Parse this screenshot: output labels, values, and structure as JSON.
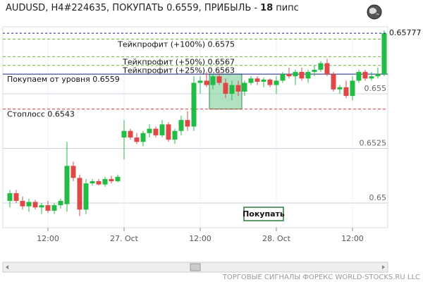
{
  "chart_data": {
    "type": "candlestick",
    "title": "AUDUSD, H4#224635, ПОКУПАТЬ 0.6559, ПРИБЫЛЬ -",
    "profit": 18,
    "profit_unit": "пипс",
    "up_color": "#22bb44",
    "down_color": "#e04848",
    "ylim": [
      0.648871,
      0.658065
    ],
    "yticks": [
      0.65,
      0.6525,
      0.655
    ],
    "xlim": [
      -1.11,
      59.56
    ],
    "xticks": [
      {
        "value": 6,
        "label": "12:00"
      },
      {
        "value": 18,
        "label": "27. Oct"
      },
      {
        "value": 30,
        "label": "12:00"
      },
      {
        "value": 42,
        "label": "28. Oct"
      },
      {
        "value": 54,
        "label": "12:00"
      }
    ],
    "grid": true,
    "candles": [
      [
        0.6501,
        0.6506,
        0.6498,
        0.65045
      ],
      [
        0.65045,
        0.6506,
        0.65,
        0.6501
      ],
      [
        0.6501,
        0.6503,
        0.6497,
        0.64985
      ],
      [
        0.64985,
        0.6502,
        0.6496,
        0.65005
      ],
      [
        0.65005,
        0.65015,
        0.6497,
        0.6498
      ],
      [
        0.6498,
        0.65,
        0.6495,
        0.6499
      ],
      [
        0.6499,
        0.6501,
        0.64955,
        0.64965
      ],
      [
        0.64965,
        0.65,
        0.6495,
        0.6499
      ],
      [
        0.6499,
        0.6502,
        0.64975,
        0.6501
      ],
      [
        0.64995,
        0.6528,
        0.6496,
        0.6517
      ],
      [
        0.6517,
        0.6519,
        0.651,
        0.65115
      ],
      [
        0.65115,
        0.6513,
        0.6494,
        0.6497
      ],
      [
        0.6497,
        0.6511,
        0.6495,
        0.6509
      ],
      [
        0.6509,
        0.6511,
        0.6508,
        0.651
      ],
      [
        0.651,
        0.6511,
        0.6508,
        0.65085
      ],
      [
        0.65085,
        0.6512,
        0.65075,
        0.6511
      ],
      [
        0.6511,
        0.65125,
        0.6509,
        0.651
      ],
      [
        0.651,
        0.6513,
        0.65095,
        0.6512
      ],
      [
        0.653,
        0.6538,
        0.652,
        0.6533
      ],
      [
        0.6533,
        0.6534,
        0.6529,
        0.653
      ],
      [
        0.653,
        0.6532,
        0.6527,
        0.6528
      ],
      [
        0.6528,
        0.6533,
        0.6526,
        0.6532
      ],
      [
        0.6532,
        0.6536,
        0.653,
        0.6534
      ],
      [
        0.6534,
        0.6535,
        0.653,
        0.6531
      ],
      [
        0.6531,
        0.6538,
        0.653,
        0.6536
      ],
      [
        0.6536,
        0.6537,
        0.6528,
        0.6529
      ],
      [
        0.6529,
        0.6534,
        0.6527,
        0.6533
      ],
      [
        0.6533,
        0.654,
        0.6531,
        0.6538
      ],
      [
        0.6538,
        0.6542,
        0.6533,
        0.6535
      ],
      [
        0.6535,
        0.6558,
        0.6533,
        0.6555
      ],
      [
        0.6555,
        0.6558,
        0.655,
        0.6556
      ],
      [
        0.6556,
        0.656,
        0.6553,
        0.6554
      ],
      [
        0.6554,
        0.6559,
        0.6552,
        0.6558
      ],
      [
        0.6558,
        0.656,
        0.6554,
        0.6555
      ],
      [
        0.6555,
        0.6557,
        0.6548,
        0.655
      ],
      [
        0.655,
        0.6556,
        0.6547,
        0.6554
      ],
      [
        0.6554,
        0.6556,
        0.6549,
        0.6551
      ],
      [
        0.6551,
        0.6556,
        0.6549,
        0.6555
      ],
      [
        0.6555,
        0.6558,
        0.6554,
        0.6557
      ],
      [
        0.6557,
        0.6558,
        0.6554,
        0.65555
      ],
      [
        0.65555,
        0.65575,
        0.6553,
        0.65565
      ],
      [
        0.65565,
        0.6557,
        0.6553,
        0.6554
      ],
      [
        0.6554,
        0.6558,
        0.655,
        0.6556
      ],
      [
        0.6556,
        0.656,
        0.6555,
        0.6559
      ],
      [
        0.6559,
        0.6562,
        0.6557,
        0.6558
      ],
      [
        0.6558,
        0.6561,
        0.6554,
        0.656
      ],
      [
        0.656,
        0.6562,
        0.6556,
        0.6557
      ],
      [
        0.6557,
        0.6561,
        0.6555,
        0.656
      ],
      [
        0.656,
        0.6563,
        0.6558,
        0.6561
      ],
      [
        0.6561,
        0.6565,
        0.656,
        0.6564
      ],
      [
        0.6564,
        0.6566,
        0.6558,
        0.6559
      ],
      [
        0.6559,
        0.656,
        0.6551,
        0.6552
      ],
      [
        0.6552,
        0.6554,
        0.655,
        0.6553
      ],
      [
        0.6553,
        0.6556,
        0.6548,
        0.6549
      ],
      [
        0.6549,
        0.6558,
        0.6547,
        0.6556
      ],
      [
        0.6556,
        0.6561,
        0.6555,
        0.656
      ],
      [
        0.656,
        0.6561,
        0.6556,
        0.6557
      ],
      [
        0.6557,
        0.656,
        0.6556,
        0.6558
      ],
      [
        0.6558,
        0.6562,
        0.6557,
        0.6559
      ],
      [
        0.6559,
        0.6579,
        0.6558,
        0.65777
      ]
    ],
    "price_label": "0.65777",
    "levels": [
      {
        "label": "Тейкпрофит (+100%) 0.6575",
        "value": 0.6575,
        "color": "#66bb33",
        "style": "dashed"
      },
      {
        "label": "Тейкпрофит (+50%) 0.6567",
        "value": 0.6567,
        "color": "#66bb33",
        "style": "dashed"
      },
      {
        "label": "Тейкпрофит (+25%) 0.6563",
        "value": 0.6563,
        "color": "#66bb33",
        "style": "dashed"
      },
      {
        "label": "Покупаем от уровня 0.6559",
        "value": 0.6559,
        "color": "#1a237e",
        "style": "solid"
      },
      {
        "label": "Стоплосс 0.6543",
        "value": 0.6543,
        "color": "#e03030",
        "style": "dashed"
      }
    ],
    "signal_zone": {
      "from": 32,
      "to": 36
    },
    "button": "Покупать",
    "footer": "ТОРГОВЫЕ СИГНАЛЫ ФОРЕКС WORLD-STOCKS.RU LLC"
  }
}
